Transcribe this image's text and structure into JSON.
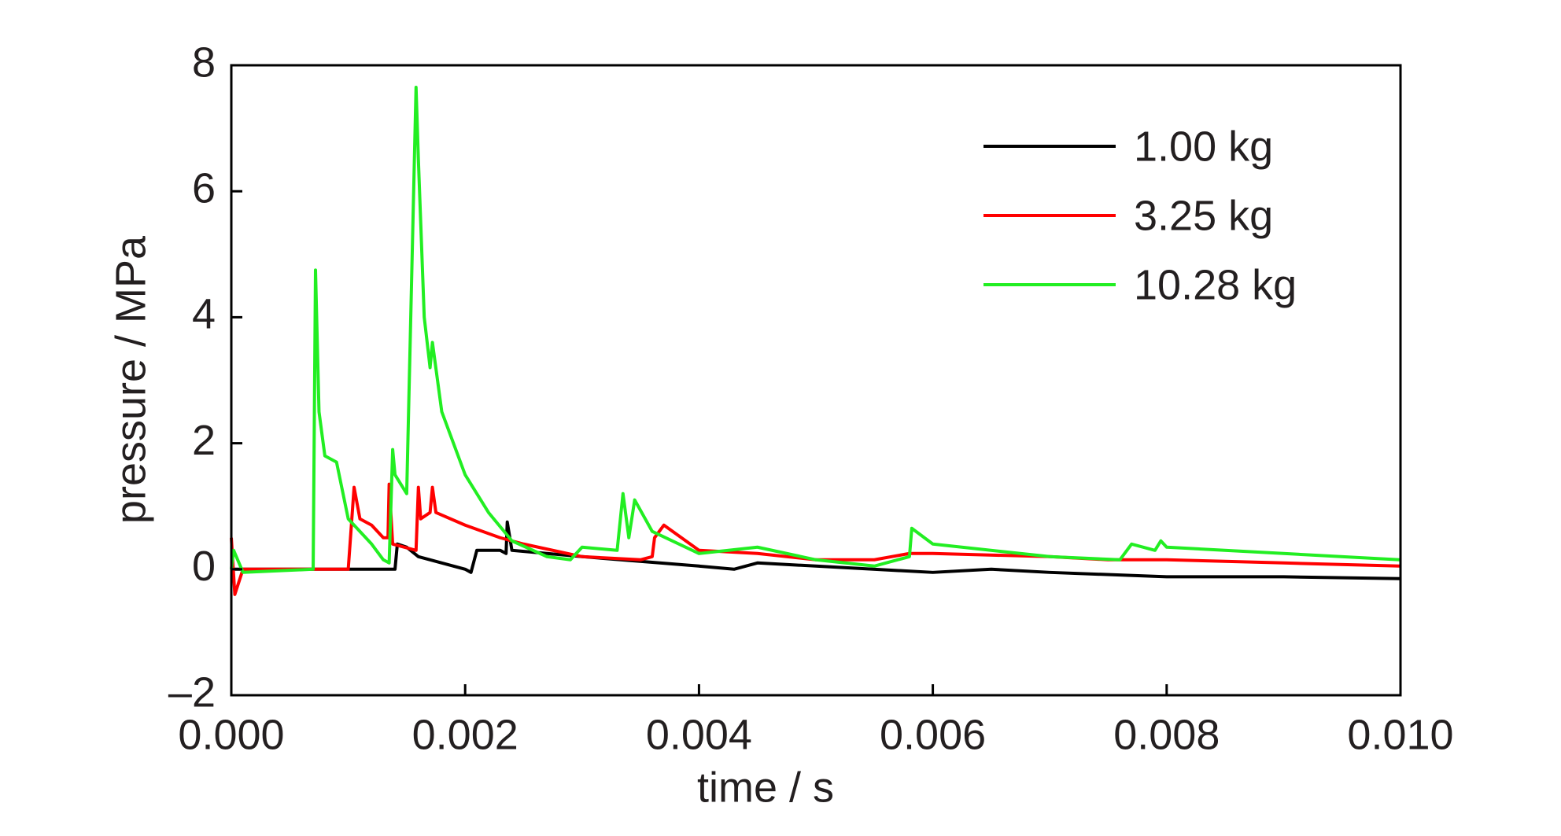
{
  "chart_data": {
    "type": "line",
    "xlabel": "time / s",
    "ylabel": "pressure / MPa",
    "xlim": [
      0,
      0.01
    ],
    "ylim": [
      -2,
      8
    ],
    "xticks": [
      {
        "value": 0,
        "label": "0.000"
      },
      {
        "value": 0.002,
        "label": "0.002"
      },
      {
        "value": 0.004,
        "label": "0.004"
      },
      {
        "value": 0.006,
        "label": "0.006"
      },
      {
        "value": 0.008,
        "label": "0.008"
      },
      {
        "value": 0.01,
        "label": "0.010"
      }
    ],
    "yticks": [
      {
        "value": -2,
        "label": "–2"
      },
      0,
      2,
      4,
      6,
      8
    ],
    "legend": "upper right",
    "series": [
      {
        "name": "1.00 kg",
        "color": "#000000",
        "x": [
          0,
          0.0014,
          0.00142,
          0.0015,
          0.0016,
          0.002,
          0.00205,
          0.0021,
          0.0023,
          0.00235,
          0.00236,
          0.0024,
          0.003,
          0.004,
          0.0043,
          0.0045,
          0.005,
          0.006,
          0.0065,
          0.007,
          0.008,
          0.009,
          0.01
        ],
        "values": [
          0,
          0,
          0.4,
          0.35,
          0.2,
          0,
          -0.05,
          0.3,
          0.3,
          0.25,
          0.75,
          0.3,
          0.2,
          0.05,
          0,
          0.1,
          0.05,
          -0.05,
          0,
          -0.05,
          -0.12,
          -0.12,
          -0.15
        ]
      },
      {
        "name": "3.25 kg",
        "color": "#ff0000",
        "x": [
          0,
          3e-05,
          0.0001,
          0.001,
          0.00105,
          0.0011,
          0.0012,
          0.0013,
          0.00134,
          0.00135,
          0.00138,
          0.00158,
          0.0016,
          0.00162,
          0.0017,
          0.00172,
          0.00175,
          0.002,
          0.0023,
          0.0025,
          0.003,
          0.0035,
          0.0036,
          0.00362,
          0.0037,
          0.004,
          0.0045,
          0.005,
          0.0055,
          0.0058,
          0.006,
          0.007,
          0.0075,
          0.008,
          0.009,
          0.01
        ],
        "values": [
          0.5,
          -0.4,
          0,
          0,
          1.3,
          0.8,
          0.7,
          0.5,
          0.5,
          1.35,
          0.4,
          0.3,
          1.3,
          0.8,
          0.9,
          1.3,
          0.9,
          0.7,
          0.5,
          0.4,
          0.2,
          0.15,
          0.2,
          0.5,
          0.7,
          0.3,
          0.25,
          0.15,
          0.15,
          0.25,
          0.25,
          0.2,
          0.15,
          0.15,
          0.1,
          0.05
        ]
      },
      {
        "name": "10.28 kg",
        "color": "#22ee22",
        "x": [
          0,
          2e-05,
          0.0001,
          0.0007,
          0.00072,
          0.00075,
          0.0008,
          0.0009,
          0.001,
          0.0012,
          0.0013,
          0.00135,
          0.00138,
          0.0014,
          0.0015,
          0.00158,
          0.0016,
          0.00165,
          0.0017,
          0.00172,
          0.0018,
          0.002,
          0.0022,
          0.0024,
          0.0027,
          0.0029,
          0.003,
          0.0033,
          0.00335,
          0.0034,
          0.00345,
          0.0036,
          0.004,
          0.0045,
          0.005,
          0.0055,
          0.0058,
          0.00582,
          0.006,
          0.007,
          0.0076,
          0.0077,
          0.0079,
          0.00795,
          0.008,
          0.009,
          0.01
        ],
        "values": [
          0,
          0.3,
          -0.05,
          0,
          4.75,
          2.5,
          1.8,
          1.7,
          0.8,
          0.4,
          0.15,
          0.1,
          1.9,
          1.5,
          1.2,
          7.65,
          6.5,
          4.0,
          3.2,
          3.6,
          2.5,
          1.5,
          0.9,
          0.45,
          0.2,
          0.15,
          0.35,
          0.3,
          1.2,
          0.5,
          1.1,
          0.6,
          0.25,
          0.35,
          0.15,
          0.05,
          0.2,
          0.65,
          0.4,
          0.2,
          0.15,
          0.4,
          0.3,
          0.45,
          0.35,
          0.25,
          0.15
        ]
      }
    ]
  }
}
